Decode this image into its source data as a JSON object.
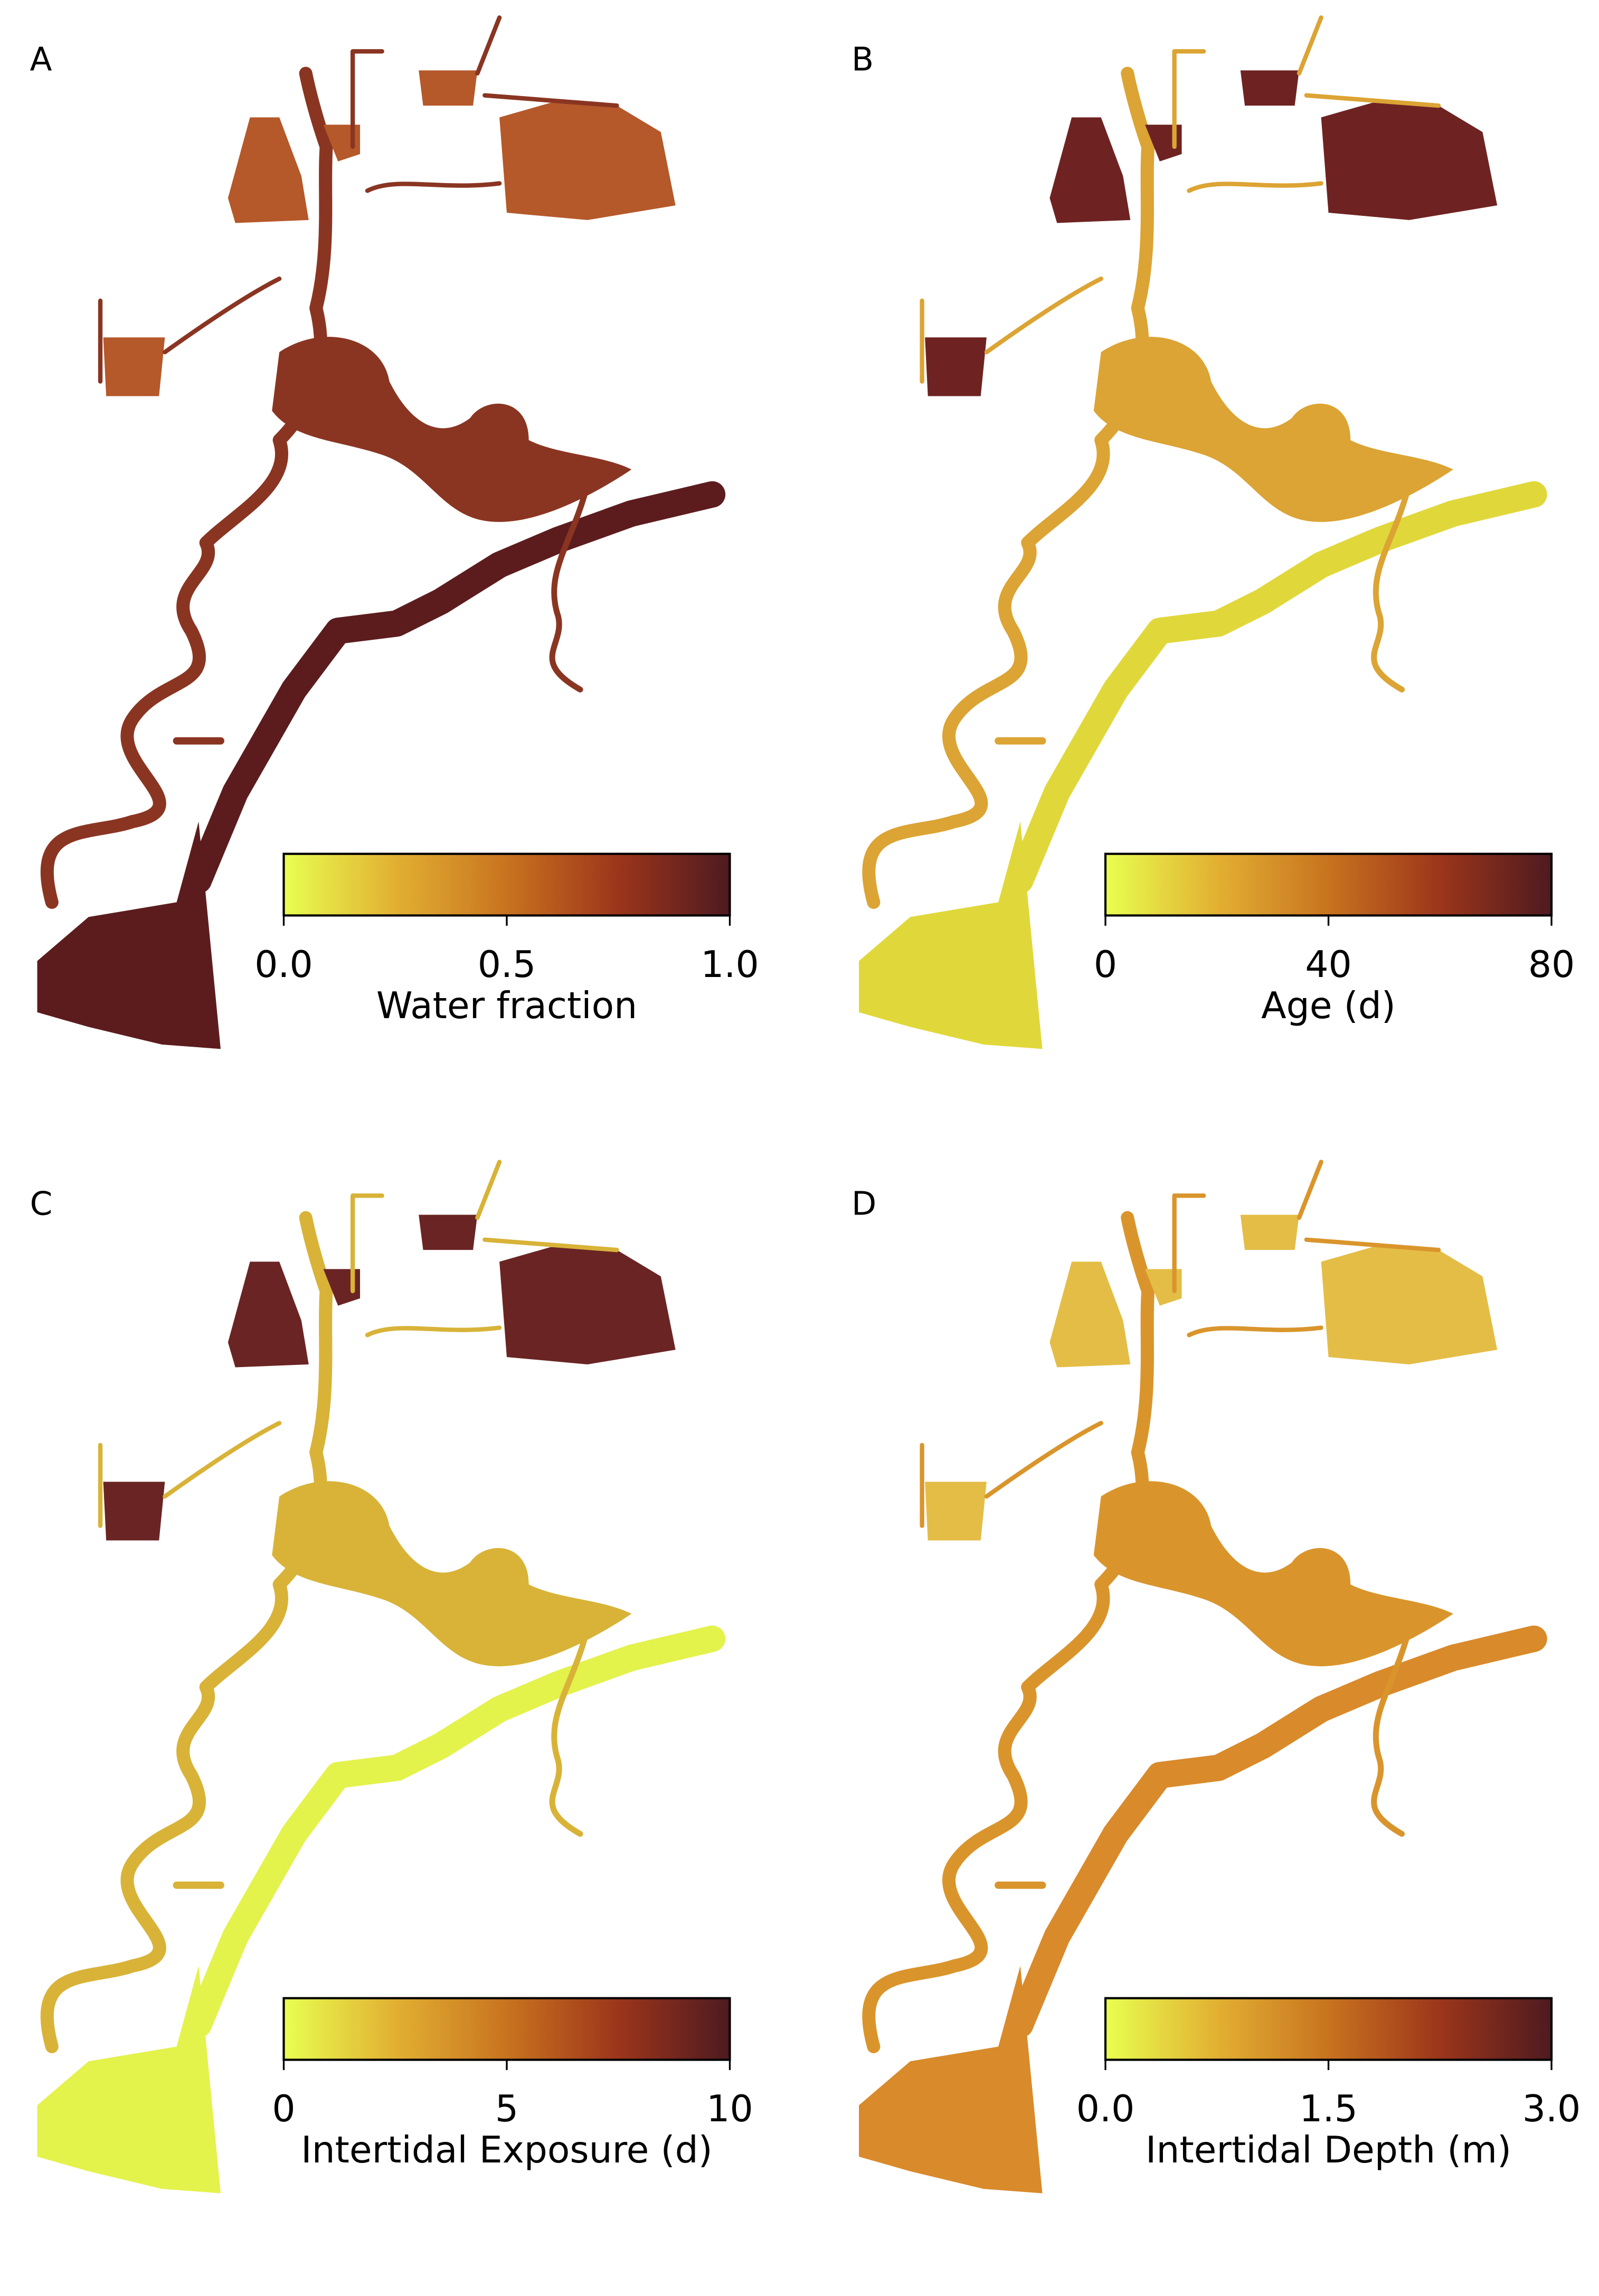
{
  "chart_data": [
    {
      "type": "map",
      "panel_label": "A",
      "colorbar_label": "Water fraction",
      "clim": [
        0,
        1
      ],
      "cticks": [
        {
          "value": 0,
          "label": "0.0"
        },
        0.5,
        {
          "value": 1,
          "label": "1.0"
        }
      ],
      "cmap": [
        "#e8ff50",
        "#e2b032",
        "#c8731f",
        "#9c351b",
        "#4e1a20"
      ]
    },
    {
      "type": "map",
      "panel_label": "B",
      "colorbar_label": "Age (d)",
      "clim": [
        0,
        80
      ],
      "cticks": [
        0,
        40,
        80
      ],
      "cmap": [
        "#e8ff50",
        "#e2b032",
        "#c8731f",
        "#9c351b",
        "#4e1a20"
      ]
    },
    {
      "type": "map",
      "panel_label": "C",
      "colorbar_label": "Intertidal Exposure (d)",
      "clim": [
        0,
        10
      ],
      "cticks": [
        0,
        5,
        10
      ],
      "cmap": [
        "#e8ff50",
        "#e2b032",
        "#c8731f",
        "#9c351b",
        "#4e1a20"
      ]
    },
    {
      "type": "map",
      "panel_label": "D",
      "colorbar_label": "Intertidal Depth (m)",
      "clim": [
        0,
        3
      ],
      "cticks": [
        {
          "value": 0,
          "label": "0.0"
        },
        1.5,
        {
          "value": 3,
          "label": "3.0"
        }
      ],
      "cmap": [
        "#e8ff50",
        "#e2b032",
        "#c8731f",
        "#9c351b",
        "#4e1a20"
      ]
    }
  ]
}
